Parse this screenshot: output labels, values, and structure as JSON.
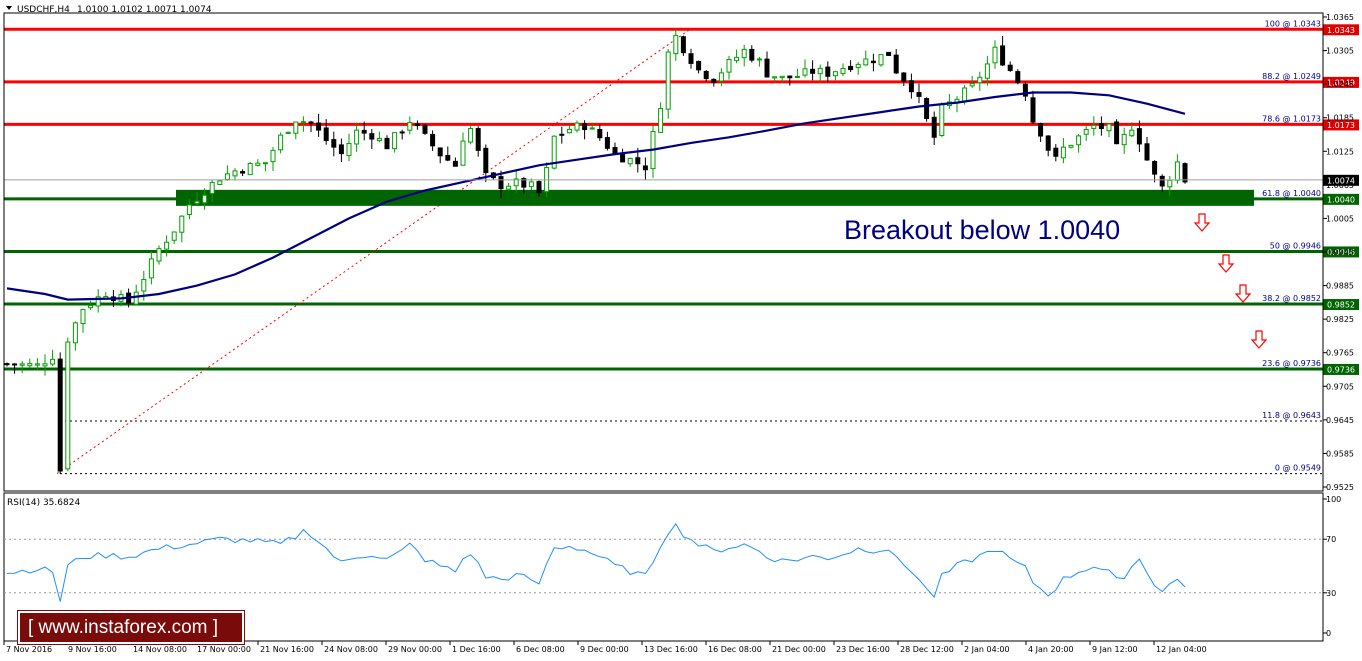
{
  "header": {
    "symbol": "USDCHF,H4",
    "ohlc": "1.0100 1.0102 1.0071 1.0074"
  },
  "annotation": {
    "text": "Breakout below 1.0040"
  },
  "watermark": {
    "text": "[ www.instaforex.com ]"
  },
  "colors": {
    "resistance_line": "#ff0000",
    "support_line": "#006400",
    "support_zone": "#006400",
    "moving_average": "#000080",
    "bull_candle": "#00a000",
    "bear_candle": "#000000",
    "rsi_line": "#1e90ff",
    "arrow": "#ff0000",
    "watermark_bg": "#7a0b0b"
  },
  "chart_data": [
    {
      "type": "candlestick",
      "ylim": [
        0.9525,
        1.0365
      ],
      "y_ticks": [
        "1.0365",
        "1.0305",
        "1.0245",
        "1.0185",
        "1.0125",
        "1.0065",
        "1.0005",
        "0.9945",
        "0.9885",
        "0.9825",
        "0.9765",
        "0.9705",
        "0.9645",
        "0.9585",
        "0.9525"
      ],
      "x_tick_labels": [
        "7 Nov 2016",
        "9 Nov 16:00",
        "14 Nov 08:00",
        "17 Nov 00:00",
        "21 Nov 16:00",
        "24 Nov 08:00",
        "29 Nov 00:00",
        "1 Dec 16:00",
        "6 Dec 08:00",
        "9 Dec 00:00",
        "13 Dec 16:00",
        "16 Dec 08:00",
        "21 Dec 00:00",
        "23 Dec 16:00",
        "28 Dec 12:00",
        "2 Jan 04:00",
        "4 Jan 20:00",
        "9 Jan 12:00",
        "12 Jan 04:00"
      ],
      "current_price": "1.0074",
      "price_path": [
        [
          0,
          0.9745
        ],
        [
          4,
          0.9742
        ],
        [
          6,
          0.976
        ],
        [
          7,
          0.9555
        ],
        [
          8,
          0.979
        ],
        [
          10,
          0.9845
        ],
        [
          13,
          0.9872
        ],
        [
          16,
          0.9855
        ],
        [
          18,
          0.99
        ],
        [
          20,
          0.995
        ],
        [
          22,
          0.9985
        ],
        [
          24,
          1.003
        ],
        [
          26,
          1.0055
        ],
        [
          28,
          1.0078
        ],
        [
          30,
          1.009
        ],
        [
          32,
          1.0098
        ],
        [
          34,
          1.0105
        ],
        [
          36,
          1.015
        ],
        [
          38,
          1.0183
        ],
        [
          40,
          1.0175
        ],
        [
          42,
          1.0145
        ],
        [
          44,
          1.012
        ],
        [
          46,
          1.016
        ],
        [
          48,
          1.0155
        ],
        [
          50,
          1.0135
        ],
        [
          52,
          1.0165
        ],
        [
          53,
          1.018
        ],
        [
          55,
          1.015
        ],
        [
          57,
          1.012
        ],
        [
          59,
          1.01
        ],
        [
          60,
          1.015
        ],
        [
          61,
          1.0165
        ],
        [
          63,
          1.008
        ],
        [
          65,
          1.0065
        ],
        [
          67,
          1.0068
        ],
        [
          69,
          1.0062
        ],
        [
          70,
          1.005
        ],
        [
          71,
          1.009
        ],
        [
          72,
          1.015
        ],
        [
          74,
          1.0165
        ],
        [
          76,
          1.0172
        ],
        [
          78,
          1.015
        ],
        [
          80,
          1.012
        ],
        [
          82,
          1.011
        ],
        [
          84,
          1.0098
        ],
        [
          86,
          1.021
        ],
        [
          87,
          1.03
        ],
        [
          88,
          1.033
        ],
        [
          89,
          1.031
        ],
        [
          91,
          1.027
        ],
        [
          93,
          1.0255
        ],
        [
          95,
          1.0282
        ],
        [
          97,
          1.0305
        ],
        [
          99,
          1.0285
        ],
        [
          100,
          1.0265
        ],
        [
          102,
          1.0255
        ],
        [
          104,
          1.026
        ],
        [
          106,
          1.0268
        ],
        [
          108,
          1.0265
        ],
        [
          110,
          1.0275
        ],
        [
          112,
          1.0285
        ],
        [
          114,
          1.029
        ],
        [
          116,
          1.03
        ],
        [
          117,
          1.027
        ],
        [
          119,
          1.024
        ],
        [
          120,
          1.0215
        ],
        [
          121,
          1.018
        ],
        [
          122,
          1.015
        ],
        [
          123,
          1.02
        ],
        [
          125,
          1.022
        ],
        [
          127,
          1.024
        ],
        [
          129,
          1.028
        ],
        [
          130,
          1.0305
        ],
        [
          132,
          1.027
        ],
        [
          134,
          1.023
        ],
        [
          135,
          1.018
        ],
        [
          136,
          1.016
        ],
        [
          137,
          1.013
        ],
        [
          138,
          1.011
        ],
        [
          139,
          1.013
        ],
        [
          141,
          1.015
        ],
        [
          143,
          1.017
        ],
        [
          145,
          1.0165
        ],
        [
          146,
          1.013
        ],
        [
          147,
          1.015
        ],
        [
          148,
          1.017
        ],
        [
          149,
          1.0145
        ],
        [
          150,
          1.011
        ],
        [
          151,
          1.008
        ],
        [
          152,
          1.006
        ],
        [
          153,
          1.008
        ],
        [
          154,
          1.0105
        ],
        [
          155,
          1.0074
        ]
      ]
    },
    {
      "type": "line",
      "name": "moving average",
      "values": [
        [
          0,
          0.988
        ],
        [
          5,
          0.987
        ],
        [
          8,
          0.986
        ],
        [
          15,
          0.9862
        ],
        [
          20,
          0.987
        ],
        [
          25,
          0.9885
        ],
        [
          30,
          0.9905
        ],
        [
          35,
          0.9935
        ],
        [
          40,
          0.997
        ],
        [
          45,
          1.0005
        ],
        [
          50,
          1.0035
        ],
        [
          55,
          1.0055
        ],
        [
          60,
          1.007
        ],
        [
          65,
          1.0085
        ],
        [
          70,
          1.01
        ],
        [
          75,
          1.011
        ],
        [
          80,
          1.012
        ],
        [
          85,
          1.0128
        ],
        [
          90,
          1.014
        ],
        [
          95,
          1.015
        ],
        [
          100,
          1.0162
        ],
        [
          105,
          1.0175
        ],
        [
          110,
          1.0185
        ],
        [
          115,
          1.0195
        ],
        [
          120,
          1.0205
        ],
        [
          125,
          1.0212
        ],
        [
          130,
          1.0222
        ],
        [
          135,
          1.023
        ],
        [
          140,
          1.023
        ],
        [
          145,
          1.0225
        ],
        [
          150,
          1.021
        ],
        [
          155,
          1.0192
        ]
      ]
    },
    {
      "type": "table",
      "name": "levels",
      "rows": [
        {
          "label": "100 @ 1.0343",
          "value": 1.0343,
          "tag": "1.0343",
          "style": "red"
        },
        {
          "label": "88.2 @ 1.0249",
          "value": 1.0249,
          "tag": "1.0249",
          "style": "red"
        },
        {
          "label": "78.6 @ 1.0173",
          "value": 1.0173,
          "tag": "1.0173",
          "style": "red"
        },
        {
          "label": "61.8 @ 1.0040",
          "value": 1.004,
          "tag": "1.0040",
          "style": "green"
        },
        {
          "label": "50 @ 0.9946",
          "value": 0.9946,
          "tag": "0.9946",
          "style": "green"
        },
        {
          "label": "38.2 @ 0.9852",
          "value": 0.9852,
          "tag": "0.9852",
          "style": "green"
        },
        {
          "label": "23.6 @ 0.9736",
          "value": 0.9736,
          "tag": "0.9736",
          "style": "green"
        },
        {
          "label": "11.8 @ 0.9643",
          "value": 0.9643,
          "tag": "",
          "style": "dotted"
        },
        {
          "label": "0 @ 0.9549",
          "value": 0.9549,
          "tag": "",
          "style": "dotted"
        }
      ]
    },
    {
      "type": "line",
      "title": "RSI(14) 35.6824",
      "ylim": [
        0,
        100
      ],
      "y_ticks": [
        "100",
        "70",
        "30",
        "0"
      ],
      "values": [
        [
          0,
          45
        ],
        [
          4,
          48
        ],
        [
          6,
          46
        ],
        [
          7,
          24
        ],
        [
          8,
          50
        ],
        [
          10,
          57
        ],
        [
          13,
          58
        ],
        [
          16,
          57
        ],
        [
          20,
          63
        ],
        [
          24,
          66
        ],
        [
          28,
          70
        ],
        [
          32,
          69
        ],
        [
          36,
          66
        ],
        [
          38,
          72
        ],
        [
          39,
          76
        ],
        [
          40,
          74
        ],
        [
          42,
          63
        ],
        [
          44,
          52
        ],
        [
          46,
          57
        ],
        [
          48,
          59
        ],
        [
          50,
          55
        ],
        [
          52,
          61
        ],
        [
          53,
          66
        ],
        [
          55,
          55
        ],
        [
          57,
          50
        ],
        [
          59,
          46
        ],
        [
          60,
          55
        ],
        [
          61,
          60
        ],
        [
          63,
          42
        ],
        [
          65,
          40
        ],
        [
          67,
          43
        ],
        [
          69,
          40
        ],
        [
          70,
          35
        ],
        [
          71,
          52
        ],
        [
          72,
          63
        ],
        [
          74,
          65
        ],
        [
          76,
          62
        ],
        [
          78,
          57
        ],
        [
          80,
          50
        ],
        [
          82,
          46
        ],
        [
          84,
          42
        ],
        [
          86,
          66
        ],
        [
          87,
          76
        ],
        [
          88,
          80
        ],
        [
          89,
          74
        ],
        [
          91,
          66
        ],
        [
          93,
          61
        ],
        [
          95,
          64
        ],
        [
          97,
          66
        ],
        [
          99,
          61
        ],
        [
          100,
          57
        ],
        [
          102,
          54
        ],
        [
          104,
          55
        ],
        [
          106,
          57
        ],
        [
          108,
          56
        ],
        [
          110,
          59
        ],
        [
          112,
          63
        ],
        [
          114,
          62
        ],
        [
          116,
          63
        ],
        [
          117,
          55
        ],
        [
          119,
          47
        ],
        [
          120,
          40
        ],
        [
          121,
          32
        ],
        [
          122,
          28
        ],
        [
          123,
          42
        ],
        [
          125,
          50
        ],
        [
          127,
          55
        ],
        [
          129,
          60
        ],
        [
          130,
          63
        ],
        [
          132,
          55
        ],
        [
          134,
          48
        ],
        [
          135,
          38
        ],
        [
          136,
          33
        ],
        [
          137,
          29
        ],
        [
          138,
          34
        ],
        [
          139,
          40
        ],
        [
          141,
          46
        ],
        [
          143,
          50
        ],
        [
          145,
          45
        ],
        [
          146,
          39
        ],
        [
          147,
          43
        ],
        [
          148,
          50
        ],
        [
          149,
          55
        ],
        [
          150,
          46
        ],
        [
          151,
          37
        ],
        [
          152,
          31
        ],
        [
          153,
          36
        ],
        [
          154,
          40
        ],
        [
          155,
          36
        ]
      ]
    }
  ]
}
